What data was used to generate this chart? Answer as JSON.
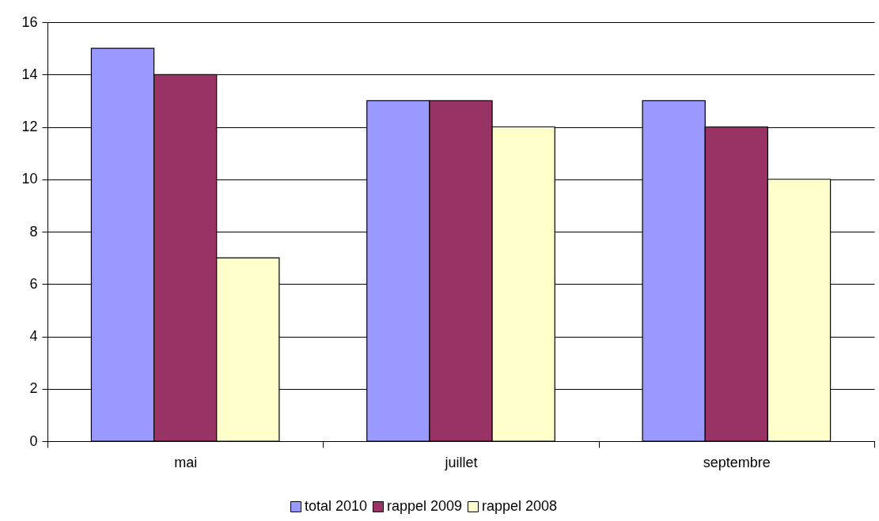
{
  "chart_data": {
    "type": "bar",
    "categories": [
      "mai",
      "juillet",
      "septembre"
    ],
    "series": [
      {
        "name": "total 2010",
        "color": "#9999ff",
        "values": [
          15,
          13,
          13
        ]
      },
      {
        "name": "rappel 2009",
        "color": "#993366",
        "values": [
          14,
          13,
          12
        ]
      },
      {
        "name": "rappel 2008",
        "color": "#ffffcc",
        "values": [
          7,
          12,
          10
        ]
      }
    ],
    "ylim": [
      0,
      16
    ],
    "yticks": [
      0,
      2,
      4,
      6,
      8,
      10,
      12,
      14,
      16
    ],
    "grid": "y",
    "legend": "bottom"
  }
}
